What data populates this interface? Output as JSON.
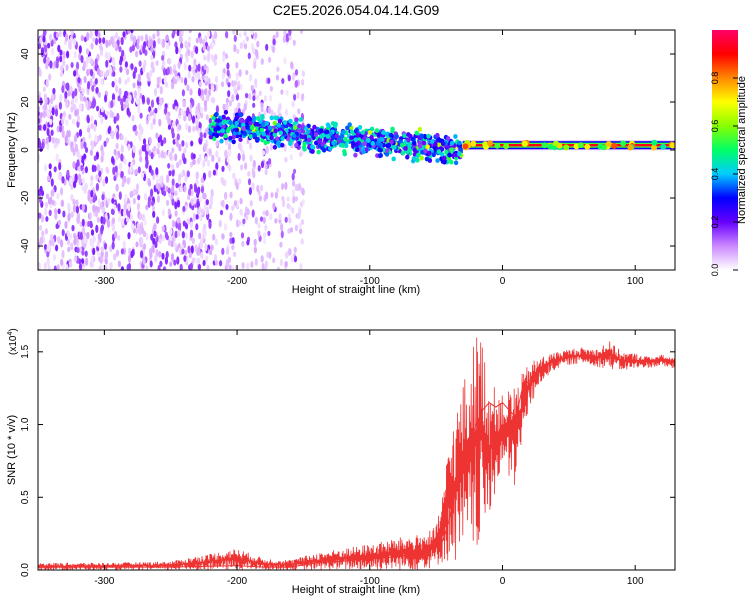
{
  "title": "C2E5.2026.054.04.14.G09",
  "chart_data": [
    {
      "type": "heatmap",
      "xlabel": "Height of straight line (km)",
      "ylabel": "Frequency (Hz)",
      "xlim": [
        -350,
        130
      ],
      "ylim": [
        -50,
        50
      ],
      "xticks": [
        -300,
        -200,
        -100,
        0,
        100
      ],
      "xtick_labels": [
        "-300",
        "-200",
        "-100",
        "0",
        "100"
      ],
      "yticks": [
        -40,
        -20,
        0,
        20,
        40
      ],
      "ytick_labels": [
        "-40",
        "-20",
        "0",
        "20",
        "40"
      ],
      "colorbar": {
        "label": "Normalized spectral amplitude",
        "range": [
          0,
          1
        ],
        "ticks": [
          0.0,
          0.2,
          0.4,
          0.6,
          0.8
        ],
        "tick_labels": [
          "0.0",
          "0.2",
          "0.4",
          "0.6",
          "0.8"
        ],
        "colormap": [
          "#ffffff",
          "#cc88ff",
          "#6600ff",
          "#0000ff",
          "#00ccff",
          "#00ff66",
          "#88ff00",
          "#ffff00",
          "#ff8800",
          "#ff0000",
          "#ff0066"
        ]
      },
      "regions": [
        {
          "name": "noise",
          "x": [
            -350,
            -220
          ],
          "freq_spread": 50,
          "amplitude": 0.08
        },
        {
          "name": "sparse-noise",
          "x": [
            -220,
            -150
          ],
          "freq_spread": 50,
          "amplitude": 0.05
        },
        {
          "name": "signal-onset",
          "x": [
            -220,
            -30
          ],
          "center_freq": [
            10,
            0
          ],
          "freq_spread": 7,
          "amplitude": 0.5
        },
        {
          "name": "tone",
          "x": [
            -30,
            130
          ],
          "center_freq": 2,
          "amplitude": 1.0
        }
      ]
    },
    {
      "type": "line",
      "xlabel": "Height of straight line (km)",
      "ylabel": "SNR (10 * v/v)",
      "y_multiplier": "(x10",
      "y_multiplier_exp": "4",
      "y_multiplier_close": ")",
      "xlim": [
        -350,
        130
      ],
      "ylim": [
        0,
        1.65
      ],
      "xticks": [
        -300,
        -200,
        -100,
        0,
        100
      ],
      "xtick_labels": [
        "-300",
        "-200",
        "-100",
        "0",
        "100"
      ],
      "yticks": [
        0,
        0.5,
        1.0,
        1.5
      ],
      "ytick_labels": [
        "0.0",
        "0.5",
        "1.0",
        "1.5"
      ],
      "series": [
        {
          "name": "SNR",
          "color": "#ee3333",
          "x": [
            -350,
            -300,
            -250,
            -200,
            -180,
            -160,
            -140,
            -120,
            -100,
            -80,
            -60,
            -50,
            -45,
            -40,
            -35,
            -30,
            -25,
            -20,
            -15,
            -10,
            -5,
            0,
            5,
            10,
            15,
            20,
            25,
            30,
            40,
            50,
            60,
            70,
            80,
            90,
            100,
            110,
            120,
            130
          ],
          "values": [
            0.02,
            0.02,
            0.02,
            0.03,
            0.02,
            0.02,
            0.05,
            0.06,
            0.08,
            0.09,
            0.12,
            0.15,
            0.2,
            0.35,
            0.6,
            0.75,
            0.85,
            1.0,
            1.1,
            1.15,
            1.12,
            1.15,
            1.1,
            1.05,
            1.25,
            1.3,
            1.35,
            1.4,
            1.44,
            1.46,
            1.48,
            1.47,
            1.46,
            1.44,
            1.44,
            1.44,
            1.45,
            1.44
          ],
          "envelope_min": [
            0.0,
            0.0,
            0.0,
            0.0,
            0.0,
            0.0,
            0.0,
            0.0,
            0.0,
            0.0,
            0.0,
            0.02,
            0.05,
            0.05,
            0.05,
            0.05,
            0.08,
            0.1,
            0.2,
            0.3,
            0.55,
            0.7,
            0.6,
            0.55,
            0.9,
            1.1,
            1.2,
            1.3,
            1.38,
            1.41,
            1.42,
            1.4,
            1.38,
            1.37,
            1.38,
            1.39,
            1.4,
            1.38
          ],
          "envelope_max": [
            0.05,
            0.05,
            0.06,
            0.15,
            0.08,
            0.07,
            0.12,
            0.15,
            0.18,
            0.22,
            0.25,
            0.3,
            0.55,
            0.9,
            1.1,
            1.3,
            1.4,
            1.65,
            1.6,
            1.3,
            1.25,
            1.2,
            1.25,
            1.3,
            1.35,
            1.42,
            1.45,
            1.47,
            1.5,
            1.52,
            1.53,
            1.52,
            1.58,
            1.5,
            1.49,
            1.47,
            1.48,
            1.46
          ]
        }
      ]
    }
  ]
}
